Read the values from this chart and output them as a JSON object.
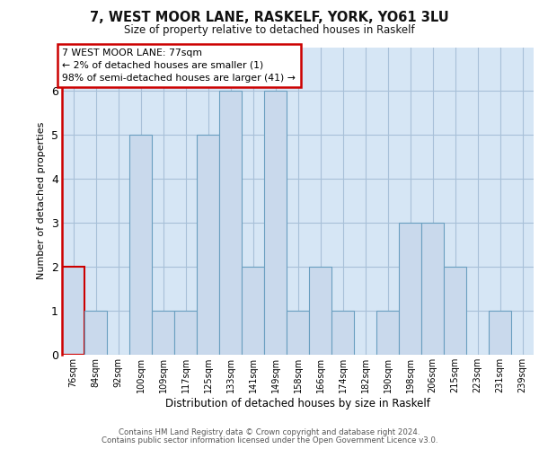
{
  "title": "7, WEST MOOR LANE, RASKELF, YORK, YO61 3LU",
  "subtitle": "Size of property relative to detached houses in Raskelf",
  "xlabel": "Distribution of detached houses by size in Raskelf",
  "ylabel": "Number of detached properties",
  "bins": [
    "76sqm",
    "84sqm",
    "92sqm",
    "100sqm",
    "109sqm",
    "117sqm",
    "125sqm",
    "133sqm",
    "141sqm",
    "149sqm",
    "158sqm",
    "166sqm",
    "174sqm",
    "182sqm",
    "190sqm",
    "198sqm",
    "206sqm",
    "215sqm",
    "223sqm",
    "231sqm",
    "239sqm"
  ],
  "values": [
    2,
    1,
    0,
    5,
    1,
    1,
    5,
    6,
    2,
    6,
    1,
    2,
    1,
    0,
    1,
    3,
    3,
    2,
    0,
    1,
    0
  ],
  "bar_color": "#c9d9ec",
  "bar_edge_color": "#6a9fc0",
  "highlight_edge_color": "#cc0000",
  "annotation_title": "7 WEST MOOR LANE: 77sqm",
  "annotation_line1": "← 2% of detached houses are smaller (1)",
  "annotation_line2": "98% of semi-detached houses are larger (41) →",
  "annotation_box_bg": "#ffffff",
  "annotation_box_edge_color": "#cc0000",
  "ylim": [
    0,
    7
  ],
  "yticks": [
    0,
    1,
    2,
    3,
    4,
    5,
    6
  ],
  "grid_color": "#a8c0d8",
  "plot_bg_color": "#d6e6f5",
  "footer1": "Contains HM Land Registry data © Crown copyright and database right 2024.",
  "footer2": "Contains public sector information licensed under the Open Government Licence v3.0."
}
